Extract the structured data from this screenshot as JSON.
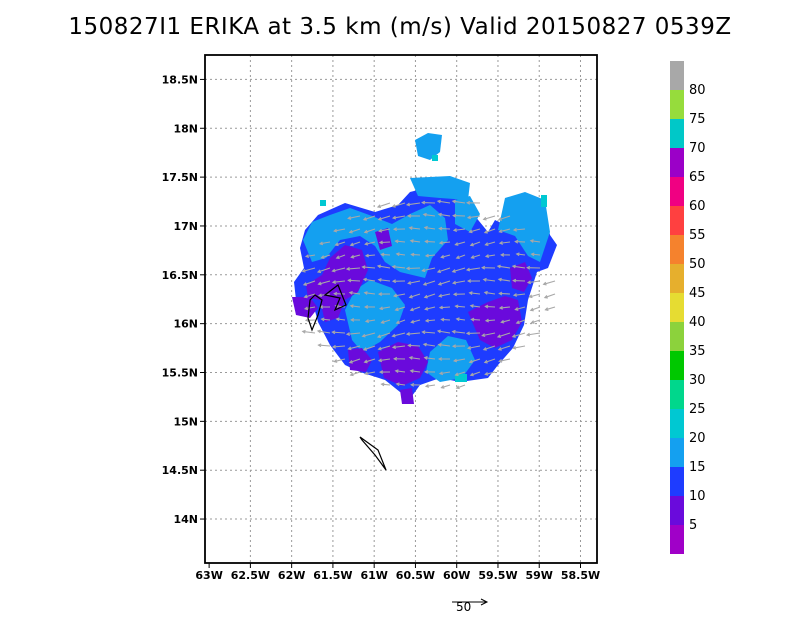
{
  "title": "150827I1 ERIKA at 3.5 km (m/s) Valid 20150827 0539Z",
  "map": {
    "lon_labels": [
      "63W",
      "62.5W",
      "62W",
      "61.5W",
      "61W",
      "60.5W",
      "60W",
      "59.5W",
      "59W",
      "58.5W"
    ],
    "lat_labels": [
      "18.5N",
      "18N",
      "17.5N",
      "17N",
      "16.5N",
      "16N",
      "15.5N",
      "15N",
      "14.5N",
      "14N"
    ],
    "lon_range": [
      -63.05,
      -58.3
    ],
    "lat_range": [
      13.55,
      18.75
    ],
    "grid": true
  },
  "colorbar": {
    "labels": [
      "80",
      "75",
      "70",
      "65",
      "60",
      "55",
      "50",
      "45",
      "40",
      "35",
      "30",
      "25",
      "20",
      "15",
      "10",
      "5"
    ],
    "colors": [
      "#a8a8a8",
      "#96dc3c",
      "#00c8c8",
      "#9b00c8",
      "#f00082",
      "#ff4040",
      "#f5822d",
      "#e6af2d",
      "#e6dc32",
      "#8cd23c",
      "#00c800",
      "#00d78c",
      "#00c8d2",
      "#14a0f0",
      "#1e3cff",
      "#6a0adc",
      "#a000c8"
    ]
  },
  "scale_vector": {
    "label": "50"
  }
}
